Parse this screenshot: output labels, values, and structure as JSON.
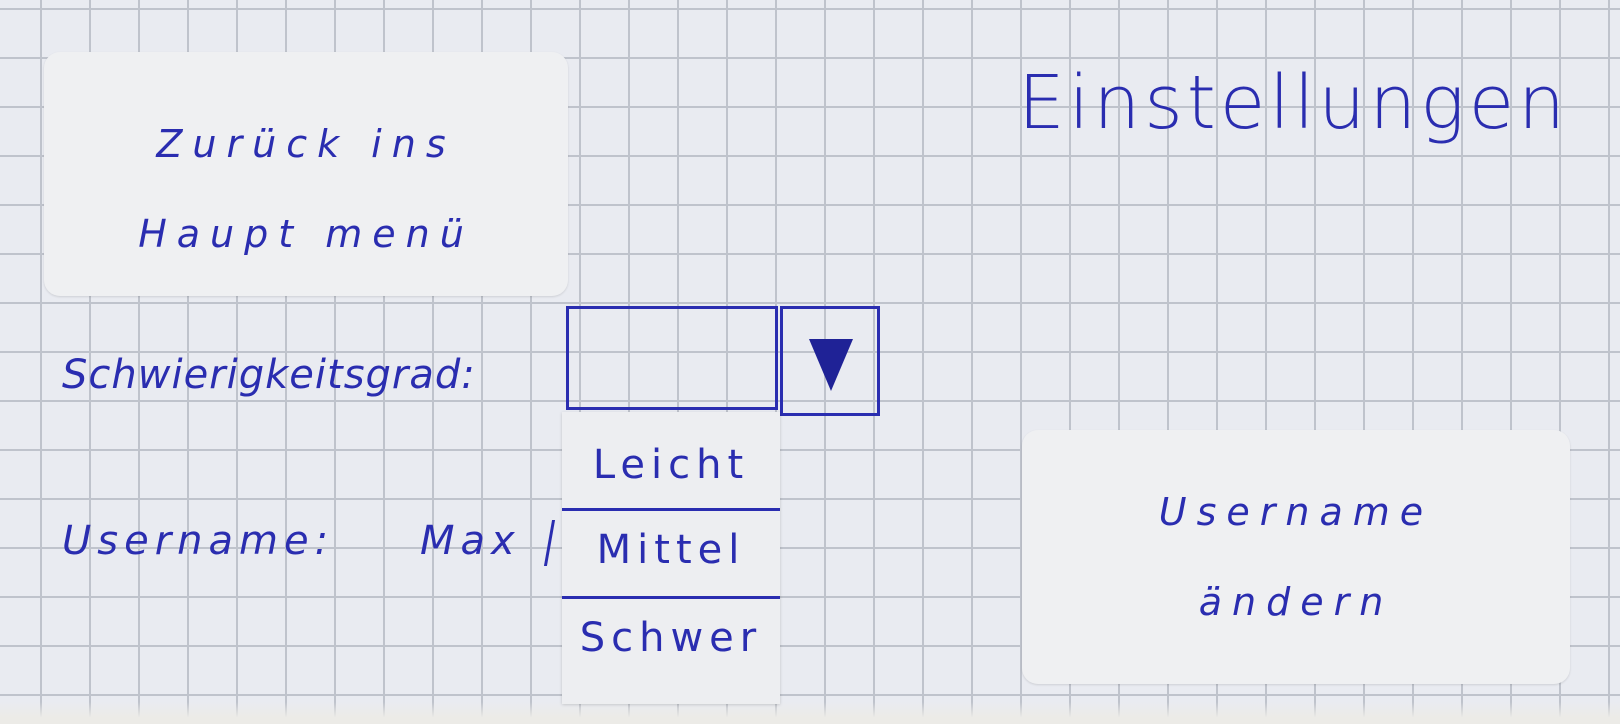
{
  "title": "Einstellungen",
  "back_button": {
    "line1": "Zurück ins",
    "line2": "Haupt menü"
  },
  "difficulty": {
    "label": "Schwierigkeitsgrad:",
    "selected": "",
    "options": [
      "Leicht",
      "Mittel",
      "Schwer"
    ]
  },
  "username": {
    "label": "Username:",
    "value": "Max"
  },
  "change_username_button": {
    "line1": "Username",
    "line2": "ändern"
  },
  "colors": {
    "ink": "#2a2db0",
    "paper": "#e9ebf1",
    "grid": "#bfc3cc",
    "card": "#eff0f2"
  },
  "icons": {
    "dropdown_toggle": "triangle-down-icon"
  }
}
